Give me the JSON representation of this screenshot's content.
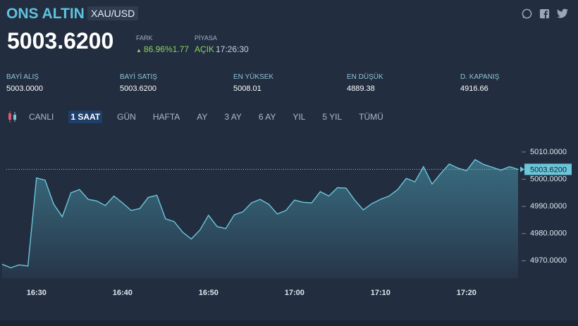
{
  "header": {
    "title": "ONS ALTIN",
    "symbol": "XAU/USD",
    "price": "5003.6200",
    "fark_label": "FARK",
    "change": "86.96%1.77",
    "piyasa_label": "PİYASA",
    "status": "AÇIK",
    "time": "17:26:30"
  },
  "stats": [
    {
      "label": "BAYİ ALIŞ",
      "value": "5003.0000"
    },
    {
      "label": "BAYİ SATIŞ",
      "value": "5003.6200"
    },
    {
      "label": "EN YÜKSEK",
      "value": "5008.01"
    },
    {
      "label": "EN DÜŞÜK",
      "value": "4889.38"
    },
    {
      "label": "D. KAPANIŞ",
      "value": "4916.66"
    }
  ],
  "tabs": {
    "items": [
      "CANLI",
      "1 SAAT",
      "GÜN",
      "HAFTA",
      "AY",
      "3 AY",
      "6 AY",
      "YIL",
      "5 YIL",
      "TÜMÜ"
    ],
    "active": 1
  },
  "chart_data": {
    "type": "area",
    "color": "#6cc6d9",
    "x": [
      "16:26",
      "16:27",
      "16:28",
      "16:29",
      "16:30",
      "16:31",
      "16:32",
      "16:33",
      "16:34",
      "16:35",
      "16:36",
      "16:37",
      "16:38",
      "16:39",
      "16:40",
      "16:41",
      "16:42",
      "16:43",
      "16:44",
      "16:45",
      "16:46",
      "16:47",
      "16:48",
      "16:49",
      "16:50",
      "16:51",
      "16:52",
      "16:53",
      "16:54",
      "16:55",
      "16:56",
      "16:57",
      "16:58",
      "16:59",
      "17:00",
      "17:01",
      "17:02",
      "17:03",
      "17:04",
      "17:05",
      "17:06",
      "17:07",
      "17:08",
      "17:09",
      "17:10",
      "17:11",
      "17:12",
      "17:13",
      "17:14",
      "17:15",
      "17:16",
      "17:17",
      "17:18",
      "17:19",
      "17:20",
      "17:21",
      "17:22",
      "17:23",
      "17:24",
      "17:25",
      "17:26"
    ],
    "values": [
      4968.7,
      4967.4,
      4968.5,
      4968,
      5000.5,
      4999.6,
      4990.8,
      4986.2,
      4995,
      4996.2,
      4992.6,
      4992,
      4990.3,
      4993.8,
      4991.3,
      4988.5,
      4989.2,
      4993.3,
      4994.1,
      4985.4,
      4984.4,
      4980.5,
      4978,
      4981.3,
      4986.7,
      4982.6,
      4981.8,
      4986.9,
      4988,
      4991.3,
      4992.6,
      4990.8,
      4987.2,
      4988.5,
      4992.3,
      4991.5,
      4991.3,
      4995.4,
      4993.8,
      4996.9,
      4996.7,
      4992.3,
      4988.7,
      4991,
      4992.6,
      4993.8,
      4996.2,
      5000.3,
      4999,
      5004.6,
      4998.2,
      5002.1,
      5005.6,
      5004.1,
      5003.1,
      5007.2,
      5005.4,
      5004.4,
      5003.3,
      5004.6,
      5003.6
    ],
    "xlim": [
      "16:26",
      "17:26"
    ],
    "xticks": [
      "16:30",
      "16:40",
      "16:50",
      "17:00",
      "17:10",
      "17:20"
    ],
    "ylim": [
      4963.6,
      5018
    ],
    "yticks": [
      {
        "value": 4970,
        "label": "4970.0000"
      },
      {
        "value": 4980,
        "label": "4980.0000"
      },
      {
        "value": 4990,
        "label": "4990.0000"
      },
      {
        "value": 5000,
        "label": "5000.0000"
      },
      {
        "value": 5010,
        "label": "5010.0000"
      }
    ],
    "current": {
      "value": 5003.62,
      "label": "5003.6200"
    }
  }
}
